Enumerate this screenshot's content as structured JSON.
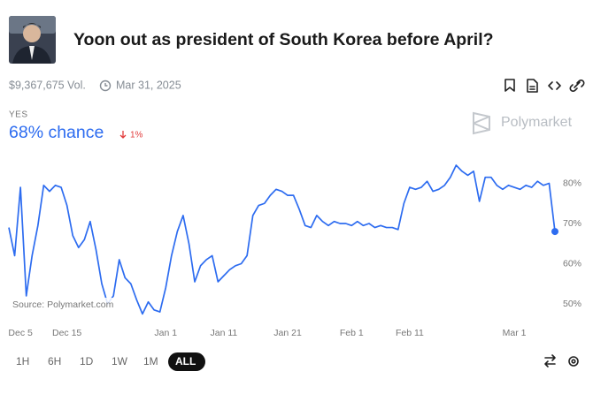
{
  "header": {
    "title": "Yoon out as president of South Korea before April?",
    "volume": "$9,367,675 Vol.",
    "end_date": "Mar 31, 2025"
  },
  "outcome": {
    "label": "YES",
    "chance": "68% chance",
    "change": "1%"
  },
  "brand": "Polymarket",
  "source": "Source: Polymarket.com",
  "time_ranges": [
    "1H",
    "6H",
    "1D",
    "1W",
    "1M",
    "ALL"
  ],
  "selected_range": "ALL",
  "chart_data": {
    "type": "line",
    "color": "#2d6cf0",
    "values": [
      69,
      62,
      79,
      52,
      62,
      69.5,
      79.5,
      78,
      79.5,
      79,
      74.5,
      67,
      64,
      66,
      70.5,
      63.5,
      55,
      50,
      52,
      61,
      56.5,
      55,
      51,
      47.5,
      50.5,
      48.5,
      48,
      54,
      62,
      68,
      72,
      65,
      55.5,
      59.5,
      61,
      62,
      55.5,
      57,
      58.5,
      59.5,
      60,
      62,
      72,
      74.5,
      75,
      77,
      78.5,
      78,
      77,
      77,
      73.5,
      69.5,
      69,
      72,
      70.5,
      69.5,
      70.5,
      70,
      70,
      69.5,
      70.5,
      69.5,
      70,
      69,
      69.5,
      69,
      69,
      68.5,
      75,
      79,
      78.5,
      79,
      80.5,
      78,
      78.5,
      79.5,
      81.5,
      84.5,
      83,
      82,
      83,
      75.5,
      81.5,
      81.5,
      79.5,
      78.5,
      79.5,
      79,
      78.5,
      79.5,
      79,
      80.5,
      79.5,
      80,
      68
    ],
    "xlim": [
      0,
      94
    ],
    "xticks": [
      {
        "value": 2,
        "label": "Dec 5"
      },
      {
        "value": 10,
        "label": "Dec 15"
      },
      {
        "value": 27,
        "label": "Jan 1"
      },
      {
        "value": 37,
        "label": "Jan 11"
      },
      {
        "value": 48,
        "label": "Jan 21"
      },
      {
        "value": 59,
        "label": "Feb 1"
      },
      {
        "value": 69,
        "label": "Feb 11"
      },
      {
        "value": 87,
        "label": "Mar 1"
      }
    ],
    "ylim": [
      46,
      85
    ],
    "yticks": [
      {
        "value": 50,
        "label": "50%"
      },
      {
        "value": 60,
        "label": "60%"
      },
      {
        "value": 70,
        "label": "70%"
      },
      {
        "value": 80,
        "label": "80%"
      }
    ],
    "grid": false
  }
}
